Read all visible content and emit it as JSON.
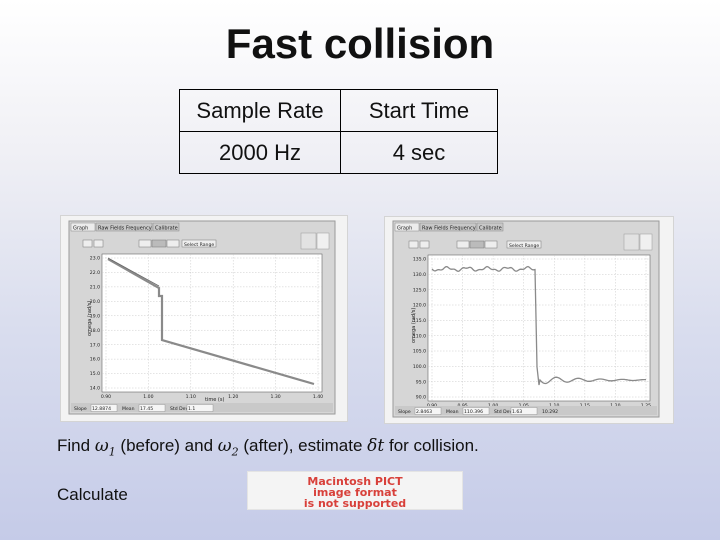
{
  "title": "Fast collision",
  "table": {
    "headers": [
      "Sample Rate",
      "Start Time"
    ],
    "values": [
      "2000 Hz",
      "4 sec"
    ]
  },
  "left_panel": {
    "tabs": [
      "Graph",
      "Raw Fields Frequency",
      "Calibrate"
    ],
    "select_range": "Select Range",
    "ylabel": "omega (rad/s)",
    "xlabel": "time (s)",
    "yticks": [
      "23.0",
      "22.0",
      "21.0",
      "20.0",
      "19.0",
      "18.0",
      "17.0",
      "16.0",
      "15.0",
      "14.0"
    ],
    "xticks": [
      "0.90",
      "1.00",
      "1.10",
      "1.20",
      "1.30",
      "1.40"
    ],
    "footer": [
      "Slope",
      "12.8874",
      "Mean",
      "17.45",
      "Std Dev",
      "1.1"
    ]
  },
  "right_panel": {
    "tabs": [
      "Graph",
      "Raw Fields Frequency",
      "Calibrate"
    ],
    "select_range": "Select Range",
    "ylabel": "omega (rad/s)",
    "xlabel": "time (s)",
    "yticks": [
      "135.0",
      "130.0",
      "125.0",
      "120.0",
      "115.0",
      "110.0",
      "105.0",
      "100.0",
      "95.0",
      "90.0"
    ],
    "xticks": [
      "0.90",
      "0.95",
      "1.00",
      "1.05",
      "1.10",
      "1.15",
      "1.20",
      "1.25"
    ],
    "footer": [
      "Slope",
      "2.8463",
      "Mean",
      "110.396",
      "Std Dev",
      "1.63",
      "10.292"
    ]
  },
  "caption": {
    "find": "Find",
    "w1_sym": "ω",
    "w1_sub": "1",
    "before": "(before) and",
    "w2_sym": "ω",
    "w2_sub": "2",
    "after": "(after), estimate",
    "dt_sym": "δt",
    "rest": "for collision."
  },
  "calculate": "Calculate",
  "pict_notice": [
    "Macintosh PICT",
    "image format",
    "is not supported"
  ],
  "colors": {
    "trace": "#8a8a8a",
    "panel_bg": "#d6d6d6",
    "pict_red": "#d8403a"
  }
}
